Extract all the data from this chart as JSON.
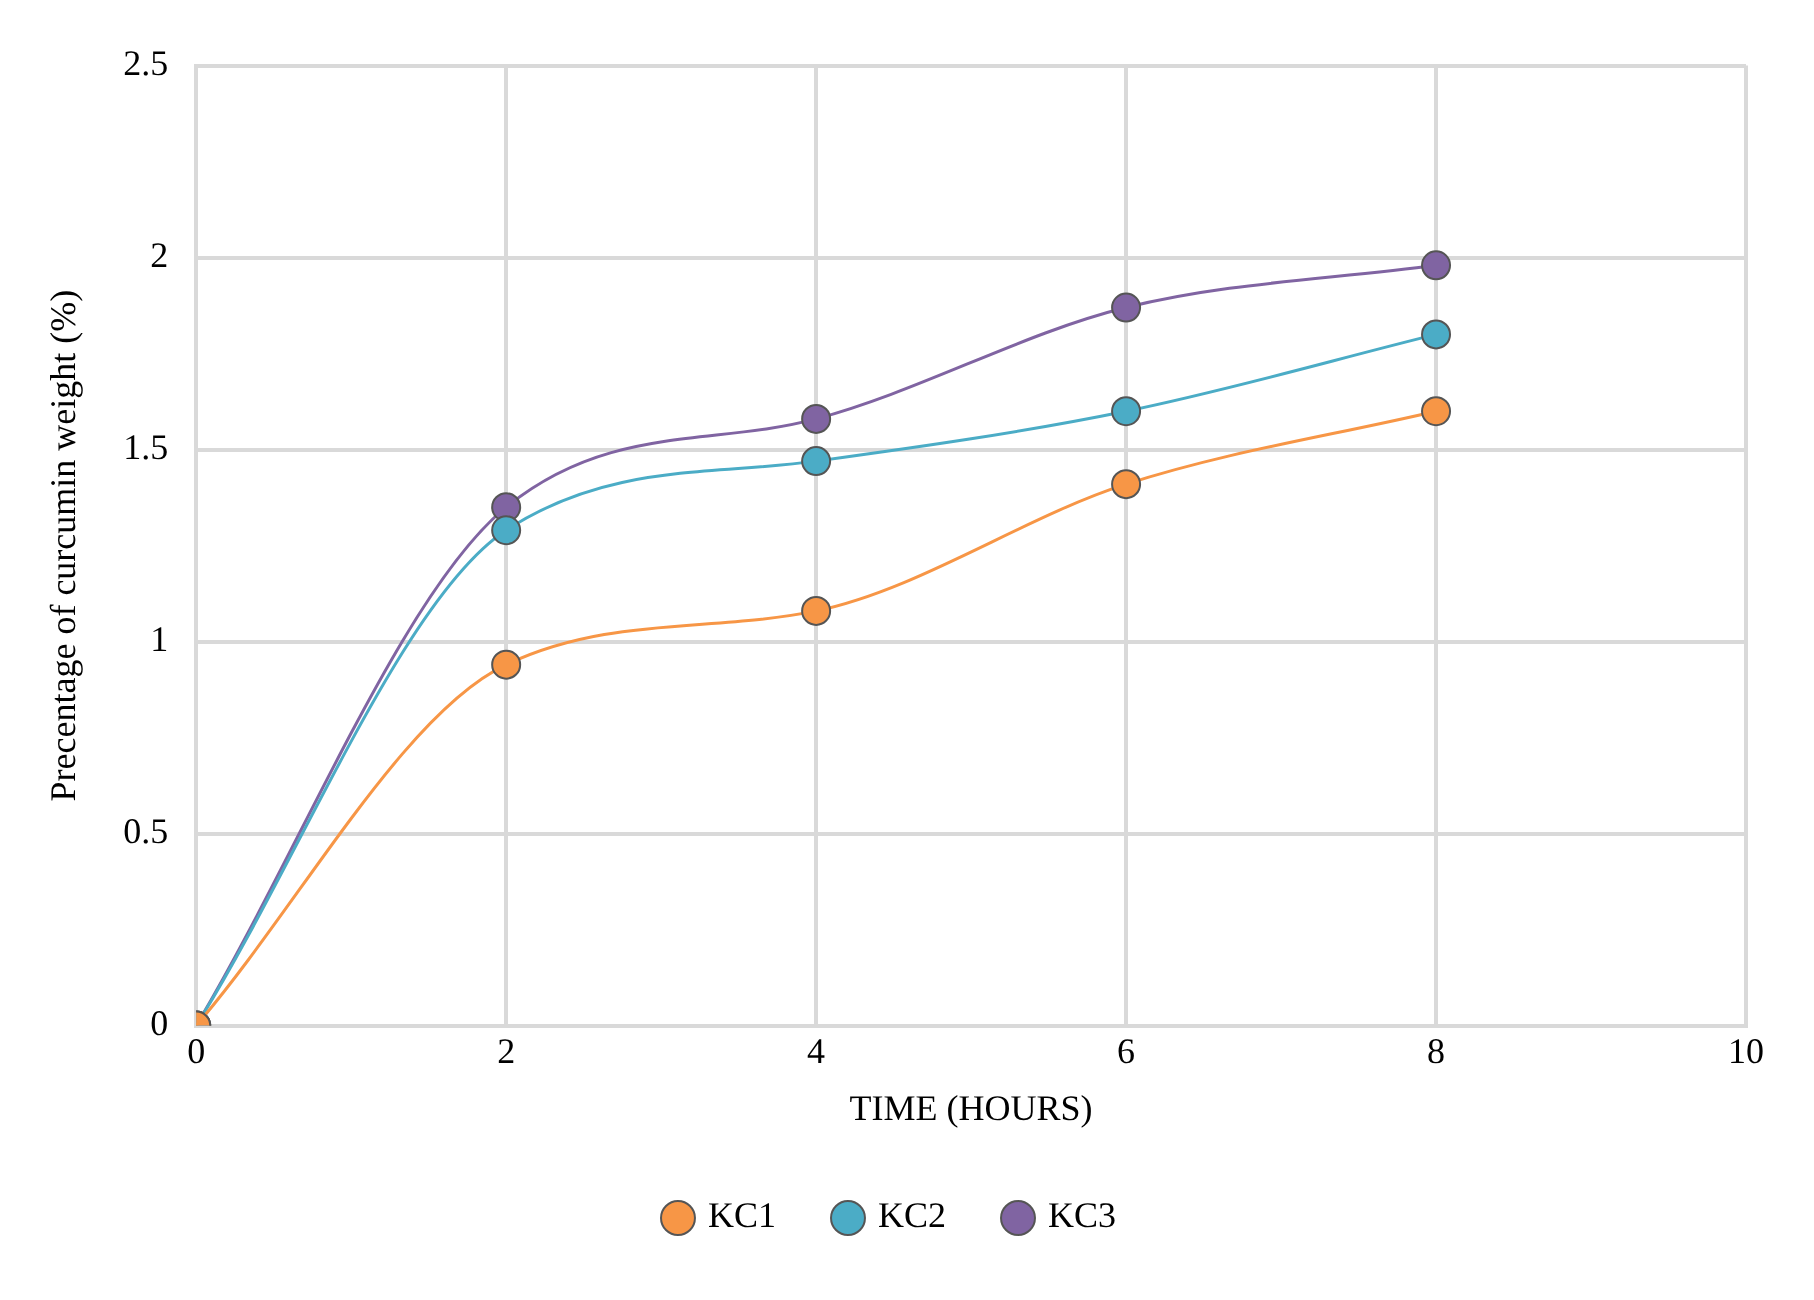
{
  "chart_data": {
    "type": "line",
    "xlabel": "TIME (HOURS)",
    "ylabel": "Precentage of curcumin weight (%)",
    "x": [
      0,
      2,
      4,
      6,
      8
    ],
    "series": [
      {
        "name": "KC1",
        "color": "#f79646",
        "values": [
          0,
          0.94,
          1.08,
          1.41,
          1.6
        ]
      },
      {
        "name": "KC2",
        "color": "#4bacc6",
        "values": [
          0,
          1.29,
          1.47,
          1.6,
          1.8
        ]
      },
      {
        "name": "KC3",
        "color": "#8064a2",
        "values": [
          0,
          1.35,
          1.58,
          1.87,
          1.98
        ]
      }
    ],
    "xlim": [
      0,
      10
    ],
    "xticks": [
      0,
      2,
      4,
      6,
      8,
      10
    ],
    "ylim": [
      0,
      2.5
    ],
    "yticks": [
      0,
      0.5,
      1,
      1.5,
      2,
      2.5
    ],
    "grid": true,
    "legend": "bottom",
    "marker": "circle",
    "line_style": "solid"
  }
}
